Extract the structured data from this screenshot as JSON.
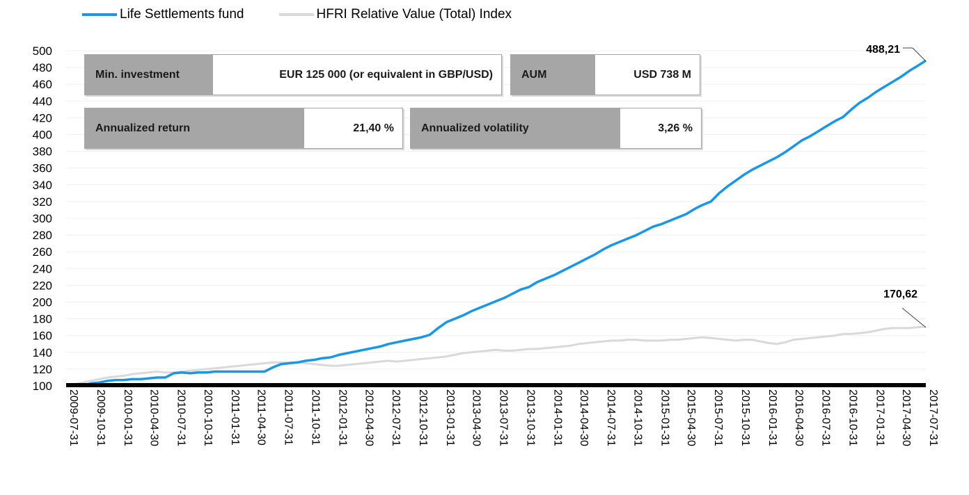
{
  "legend": [
    {
      "name": "Life Settlements fund",
      "color": "#1a96e6"
    },
    {
      "name": "HFRI Relative Value (Total) Index",
      "color": "#d9d9d9"
    }
  ],
  "info_boxes": {
    "min_investment": {
      "label": "Min. investment",
      "value": "EUR 125 000 (or equivalent in GBP/USD)"
    },
    "aum": {
      "label": "AUM",
      "value": "USD 738 M"
    },
    "annualized_return": {
      "label": "Annualized return",
      "value": "21,40 %"
    },
    "annualized_volatility": {
      "label": "Annualized volatility",
      "value": "3,26 %"
    }
  },
  "end_labels": {
    "fund": "488,21",
    "index": "170,62"
  },
  "chart_data": {
    "type": "line",
    "ylim": [
      100,
      500
    ],
    "yticks": [
      100,
      120,
      140,
      160,
      180,
      200,
      220,
      240,
      260,
      280,
      300,
      320,
      340,
      360,
      380,
      400,
      420,
      440,
      460,
      480,
      500
    ],
    "x_start": "2009-07-31",
    "x_end": "2017-07-31",
    "xticks": [
      "2009-07-31",
      "2009-10-31",
      "2010-01-31",
      "2010-04-30",
      "2010-07-31",
      "2010-10-31",
      "2011-01-31",
      "2011-04-30",
      "2011-07-31",
      "2011-10-31",
      "2012-01-31",
      "2012-04-30",
      "2012-07-31",
      "2012-10-31",
      "2013-01-31",
      "2013-04-30",
      "2013-07-31",
      "2013-10-31",
      "2014-01-31",
      "2014-04-30",
      "2014-07-31",
      "2014-10-31",
      "2015-01-31",
      "2015-04-30",
      "2015-07-31",
      "2015-10-31",
      "2016-01-31",
      "2016-04-30",
      "2016-07-31",
      "2016-10-31",
      "2017-01-31",
      "2017-04-30",
      "2017-07-31"
    ],
    "series": [
      {
        "name": "Life Settlements fund",
        "color": "#1a96e6",
        "values": [
          100,
          100,
          100,
          103,
          104,
          106,
          107,
          107,
          108,
          108,
          109,
          110,
          110,
          115,
          116,
          115,
          116,
          116,
          117,
          117,
          117,
          117,
          117,
          117,
          117,
          122,
          126,
          127,
          128,
          130,
          131,
          133,
          134,
          137,
          139,
          141,
          143,
          145,
          147,
          150,
          152,
          154,
          156,
          158,
          161,
          169,
          176,
          180,
          184,
          189,
          193,
          197,
          201,
          205,
          210,
          215,
          218,
          224,
          228,
          232,
          237,
          242,
          247,
          252,
          257,
          263,
          268,
          272,
          276,
          280,
          285,
          290,
          293,
          297,
          301,
          305,
          311,
          316,
          320,
          330,
          338,
          345,
          352,
          358,
          363,
          368,
          373,
          379,
          386,
          393,
          398,
          404,
          410,
          416,
          421,
          430,
          438,
          444,
          451,
          457,
          463,
          469,
          476,
          482,
          488.21
        ]
      },
      {
        "name": "HFRI Relative Value (Total) Index",
        "color": "#d9d9d9",
        "values": [
          100,
          102,
          104,
          106,
          108,
          110,
          111,
          112,
          114,
          115,
          116,
          117,
          116,
          116,
          117,
          118,
          119,
          120,
          121,
          122,
          123,
          124,
          125,
          126,
          127,
          128,
          128,
          128,
          128,
          127,
          126,
          125,
          124,
          124,
          125,
          126,
          127,
          128,
          129,
          130,
          129,
          130,
          131,
          132,
          133,
          134,
          135,
          137,
          139,
          140,
          141,
          142,
          143,
          142,
          142,
          143,
          144,
          144,
          145,
          146,
          147,
          148,
          150,
          151,
          152,
          153,
          154,
          154,
          155,
          155,
          154,
          154,
          154,
          155,
          155,
          156,
          157,
          158,
          157,
          156,
          155,
          154,
          155,
          155,
          153,
          151,
          150,
          152,
          155,
          156,
          157,
          158,
          159,
          160,
          162,
          162,
          163,
          164,
          166,
          168,
          169,
          169,
          169,
          170,
          170.62
        ]
      }
    ]
  }
}
